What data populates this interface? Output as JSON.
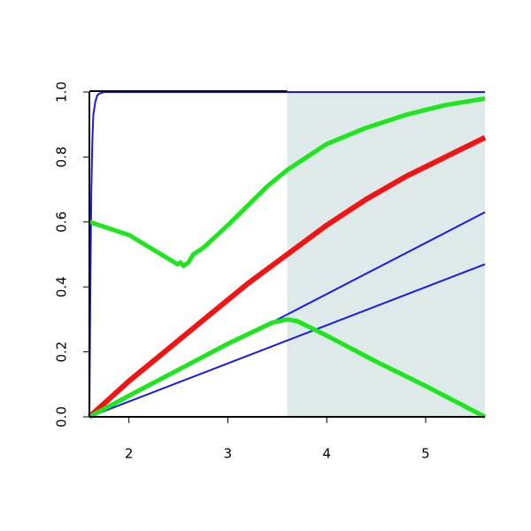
{
  "chart_data": {
    "type": "line",
    "xlim": [
      1.6,
      5.6
    ],
    "ylim": [
      0,
      1
    ],
    "xticks": [
      2,
      3,
      4,
      5
    ],
    "yticks": [
      {
        "value": 0,
        "label": "0.0"
      },
      0.2,
      0.4,
      0.6,
      0.8,
      {
        "value": 1,
        "label": "1.0"
      }
    ],
    "grid": false,
    "shaded_region": {
      "xlim": [
        3.6,
        5.6
      ],
      "color": "#dee9e9"
    },
    "series": [
      {
        "color": "#1a1ae6",
        "width": 2,
        "x": [
          1.6,
          1.61,
          1.62,
          1.63,
          1.64,
          1.66,
          1.68,
          1.7,
          1.75,
          1.8,
          5.6
        ],
        "values": [
          0,
          0.42,
          0.7,
          0.85,
          0.93,
          0.97,
          0.99,
          0.995,
          1,
          1,
          1
        ]
      },
      {
        "color": "#1a1ae6",
        "width": 2,
        "x": [
          1.6,
          5.6
        ],
        "values": [
          0,
          0.63
        ]
      },
      {
        "color": "#1a1ae6",
        "width": 2,
        "x": [
          1.6,
          5.6
        ],
        "values": [
          0,
          0.47
        ]
      },
      {
        "color": "#f01414",
        "width": 6,
        "x": [
          1.6,
          2.0,
          2.4,
          2.8,
          3.2,
          3.6,
          4.0,
          4.4,
          4.8,
          5.2,
          5.6
        ],
        "values": [
          0,
          0.11,
          0.21,
          0.31,
          0.41,
          0.5,
          0.59,
          0.67,
          0.74,
          0.8,
          0.86
        ]
      },
      {
        "color": "#1ee61e",
        "width": 5,
        "x": [
          1.6,
          2.0,
          2.49,
          2.52,
          2.55,
          2.6,
          2.65,
          2.75,
          3.0,
          3.2,
          3.4,
          3.6,
          3.8,
          4.0,
          4.4,
          4.8,
          5.2,
          5.6
        ],
        "values": [
          0.6,
          0.56,
          0.47,
          0.475,
          0.465,
          0.475,
          0.5,
          0.52,
          0.59,
          0.65,
          0.71,
          0.76,
          0.8,
          0.84,
          0.89,
          0.93,
          0.96,
          0.98
        ]
      },
      {
        "color": "#1ee61e",
        "width": 5,
        "x": [
          1.6,
          2.0,
          2.5,
          3.0,
          3.45,
          3.6,
          3.7,
          4.0,
          4.5,
          5.0,
          5.6
        ],
        "values": [
          0,
          0.065,
          0.145,
          0.225,
          0.29,
          0.3,
          0.295,
          0.25,
          0.17,
          0.095,
          0
        ]
      }
    ]
  }
}
